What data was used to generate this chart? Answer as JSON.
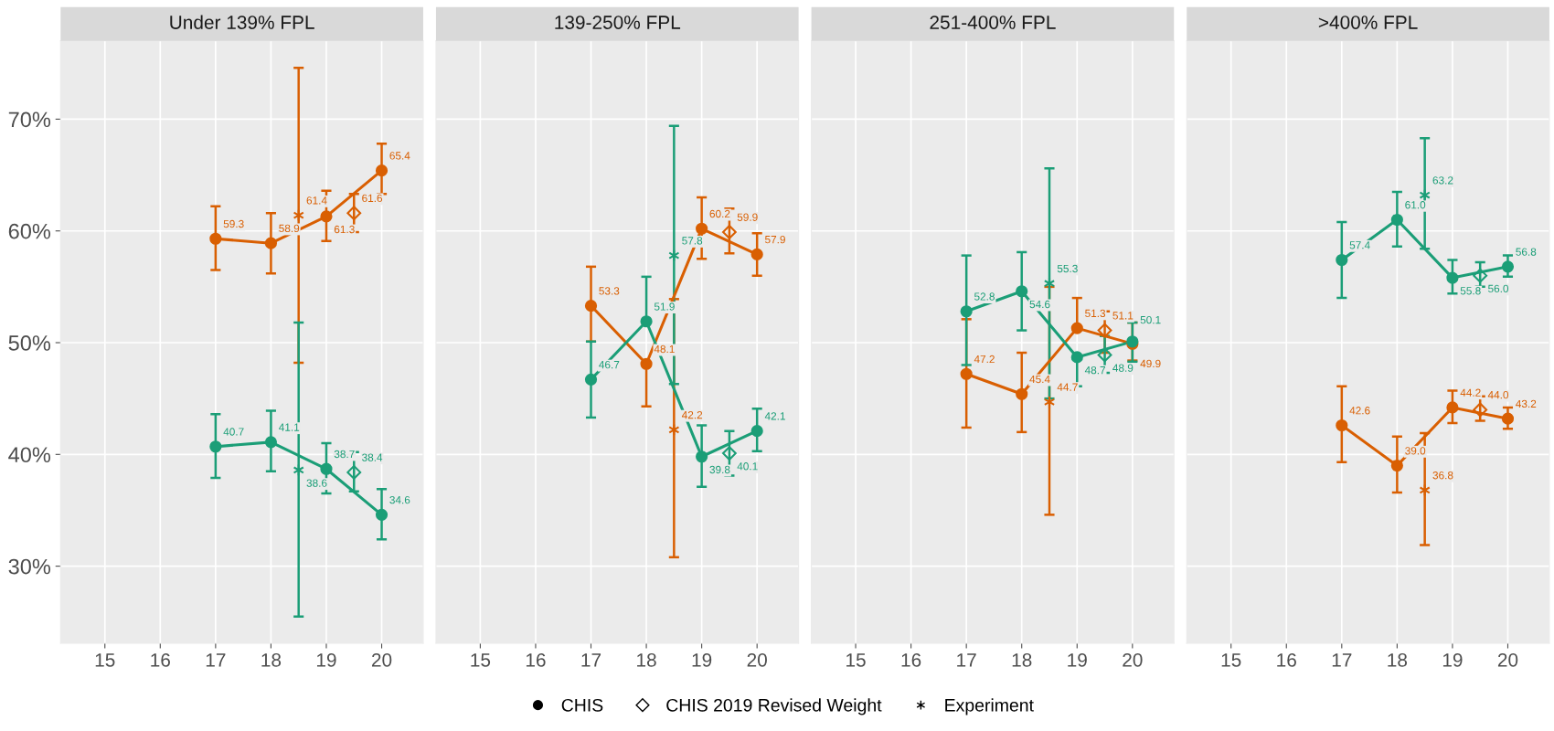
{
  "chart_data": [
    {
      "type": "line",
      "title": "Under 139% FPL",
      "xlim": [
        14.2,
        20.75
      ],
      "xticks": [
        15,
        16,
        17,
        18,
        19,
        20
      ],
      "ylim": [
        23.1,
        77.0
      ],
      "yticks": [
        {
          "value": 30,
          "label": "30%"
        },
        {
          "value": 40,
          "label": "40%"
        },
        {
          "value": 50,
          "label": "50%"
        },
        {
          "value": 60,
          "label": "60%"
        },
        {
          "value": 70,
          "label": "70%"
        }
      ],
      "grid": true,
      "data_labels": true,
      "annotations": [
        "CHIS",
        "CHIS 2019 Revised Weight",
        "Experiment"
      ],
      "series": [
        {
          "marker": "circle",
          "color": "#d95f02",
          "x": [
            17,
            18,
            19,
            20
          ],
          "values": [
            59.3,
            58.9,
            61.3,
            65.4
          ],
          "errors": [
            [
              56.5,
              62.2
            ],
            [
              56.2,
              61.6
            ],
            [
              59.1,
              63.6
            ],
            [
              63.3,
              67.8
            ]
          ]
        },
        {
          "type": "scatter",
          "marker": "diamond",
          "color": "#d95f02",
          "x": [
            19.5
          ],
          "values": [
            61.6
          ],
          "errors": [
            [
              59.9,
              63.3
            ]
          ]
        },
        {
          "type": "scatter",
          "marker": "cross",
          "color": "#d95f02",
          "x": [
            18.5
          ],
          "values": [
            61.4
          ],
          "errors": [
            [
              48.2,
              74.6
            ]
          ]
        },
        {
          "marker": "circle",
          "color": "#1b9e77",
          "x": [
            17,
            18,
            19,
            20
          ],
          "values": [
            40.7,
            41.1,
            38.7,
            34.6
          ],
          "errors": [
            [
              37.9,
              43.6
            ],
            [
              38.5,
              43.9
            ],
            [
              36.5,
              41.0
            ],
            [
              32.4,
              36.9
            ]
          ]
        },
        {
          "type": "scatter",
          "marker": "diamond",
          "color": "#1b9e77",
          "x": [
            19.5
          ],
          "values": [
            38.4
          ],
          "errors": [
            [
              36.7,
              40.2
            ]
          ]
        },
        {
          "type": "scatter",
          "marker": "cross",
          "color": "#1b9e77",
          "x": [
            18.5
          ],
          "values": [
            38.6
          ],
          "errors": [
            [
              25.5,
              51.8
            ]
          ]
        }
      ]
    },
    {
      "type": "line",
      "title": "139-250% FPL",
      "xlim": [
        14.2,
        20.75
      ],
      "xticks": [
        15,
        16,
        17,
        18,
        19,
        20
      ],
      "ylim": [
        23.1,
        77.0
      ],
      "yticks": [
        30,
        40,
        50,
        60,
        70
      ],
      "grid": true,
      "tick_labels": "x",
      "data_labels": true,
      "series": [
        {
          "marker": "circle",
          "color": "#d95f02",
          "x": [
            17,
            18,
            19,
            20
          ],
          "values": [
            53.3,
            48.1,
            60.2,
            57.9
          ],
          "errors": [
            [
              50.1,
              56.8
            ],
            [
              44.3,
              48.1
            ],
            [
              57.5,
              63.0
            ],
            [
              56.0,
              59.8
            ]
          ]
        },
        {
          "type": "scatter",
          "marker": "diamond",
          "color": "#d95f02",
          "x": [
            19.5
          ],
          "values": [
            59.9
          ],
          "errors": [
            [
              58.0,
              62.0
            ]
          ]
        },
        {
          "type": "scatter",
          "marker": "cross",
          "color": "#d95f02",
          "x": [
            18.5
          ],
          "values": [
            42.2
          ],
          "errors": [
            [
              30.8,
              53.9
            ]
          ]
        },
        {
          "marker": "circle",
          "color": "#1b9e77",
          "x": [
            17,
            18,
            19,
            20
          ],
          "values": [
            46.7,
            51.9,
            39.8,
            42.1
          ],
          "errors": [
            [
              43.3,
              50.1
            ],
            [
              51.9,
              55.9
            ],
            [
              37.1,
              42.6
            ],
            [
              40.3,
              44.1
            ]
          ]
        },
        {
          "type": "scatter",
          "marker": "diamond",
          "color": "#1b9e77",
          "x": [
            19.5
          ],
          "values": [
            40.1
          ],
          "errors": [
            [
              38.1,
              42.1
            ]
          ]
        },
        {
          "type": "scatter",
          "marker": "cross",
          "color": "#1b9e77",
          "x": [
            18.5
          ],
          "values": [
            57.8
          ],
          "errors": [
            [
              46.3,
              69.4
            ]
          ]
        }
      ]
    },
    {
      "type": "line",
      "title": "251-400% FPL",
      "xlim": [
        14.2,
        20.75
      ],
      "xticks": [
        15,
        16,
        17,
        18,
        19,
        20
      ],
      "ylim": [
        23.1,
        77.0
      ],
      "yticks": [
        30,
        40,
        50,
        60,
        70
      ],
      "grid": true,
      "tick_labels": "x",
      "data_labels": true,
      "series": [
        {
          "marker": "circle",
          "color": "#d95f02",
          "x": [
            17,
            18,
            19,
            20
          ],
          "values": [
            47.2,
            45.4,
            51.3,
            49.9
          ],
          "errors": [
            [
              42.4,
              52.1
            ],
            [
              42.0,
              49.1
            ],
            [
              51.3,
              54.0
            ],
            [
              48.4,
              51.8
            ]
          ]
        },
        {
          "type": "scatter",
          "marker": "diamond",
          "color": "#d95f02",
          "x": [
            19.5
          ],
          "values": [
            51.1
          ],
          "errors": [
            [
              49.1,
              52.8
            ]
          ]
        },
        {
          "type": "scatter",
          "marker": "cross",
          "color": "#d95f02",
          "x": [
            18.5
          ],
          "values": [
            44.7
          ],
          "errors": [
            [
              34.6,
              55.0
            ]
          ]
        },
        {
          "marker": "circle",
          "color": "#1b9e77",
          "x": [
            17,
            18,
            19,
            20
          ],
          "values": [
            52.8,
            54.6,
            48.7,
            50.1
          ],
          "errors": [
            [
              48.0,
              57.8
            ],
            [
              51.1,
              58.1
            ],
            [
              46.1,
              48.7
            ],
            [
              48.3,
              51.8
            ]
          ]
        },
        {
          "type": "scatter",
          "marker": "diamond",
          "color": "#1b9e77",
          "x": [
            19.5
          ],
          "values": [
            48.9
          ],
          "errors": [
            [
              47.3,
              50.6
            ]
          ]
        },
        {
          "type": "scatter",
          "marker": "cross",
          "color": "#1b9e77",
          "x": [
            18.5
          ],
          "values": [
            55.3
          ],
          "errors": [
            [
              45.0,
              65.6
            ]
          ]
        }
      ]
    },
    {
      "type": "line",
      "title": ">400% FPL",
      "xlim": [
        14.2,
        20.75
      ],
      "xticks": [
        15,
        16,
        17,
        18,
        19,
        20
      ],
      "ylim": [
        23.1,
        77.0
      ],
      "yticks": [
        30,
        40,
        50,
        60,
        70
      ],
      "grid": true,
      "tick_labels": "x",
      "data_labels": true,
      "series": [
        {
          "marker": "circle",
          "color": "#d95f02",
          "x": [
            17,
            18,
            19,
            20
          ],
          "values": [
            42.6,
            39.0,
            44.2,
            43.2
          ],
          "value_labels": [
            "42.6",
            "39.0",
            "44.2",
            "43.2"
          ],
          "errors": [
            [
              39.3,
              46.1
            ],
            [
              36.6,
              41.6
            ],
            [
              42.8,
              45.7
            ],
            [
              42.3,
              44.2
            ]
          ]
        },
        {
          "type": "scatter",
          "marker": "diamond",
          "color": "#d95f02",
          "x": [
            19.5
          ],
          "values": [
            44.0
          ],
          "value_labels": [
            "44.0"
          ],
          "errors": [
            [
              43.0,
              45.2
            ]
          ]
        },
        {
          "type": "scatter",
          "marker": "cross",
          "color": "#d95f02",
          "x": [
            18.5
          ],
          "values": [
            36.8
          ],
          "errors": [
            [
              31.9,
              41.9
            ]
          ]
        },
        {
          "marker": "circle",
          "color": "#1b9e77",
          "x": [
            17,
            18,
            19,
            20
          ],
          "values": [
            57.4,
            61.0,
            55.8,
            56.8
          ],
          "value_labels": [
            "57.4",
            "61.0",
            "55.8",
            "56.8"
          ],
          "errors": [
            [
              54.0,
              60.8
            ],
            [
              58.6,
              63.5
            ],
            [
              54.4,
              57.4
            ],
            [
              55.9,
              57.8
            ]
          ]
        },
        {
          "type": "scatter",
          "marker": "diamond",
          "color": "#1b9e77",
          "x": [
            19.5
          ],
          "values": [
            56.0
          ],
          "value_labels": [
            "56.0"
          ],
          "errors": [
            [
              55.0,
              57.2
            ]
          ]
        },
        {
          "type": "scatter",
          "marker": "cross",
          "color": "#1b9e77",
          "x": [
            18.5
          ],
          "values": [
            63.2
          ],
          "errors": [
            [
              58.4,
              68.3
            ]
          ]
        }
      ]
    }
  ]
}
